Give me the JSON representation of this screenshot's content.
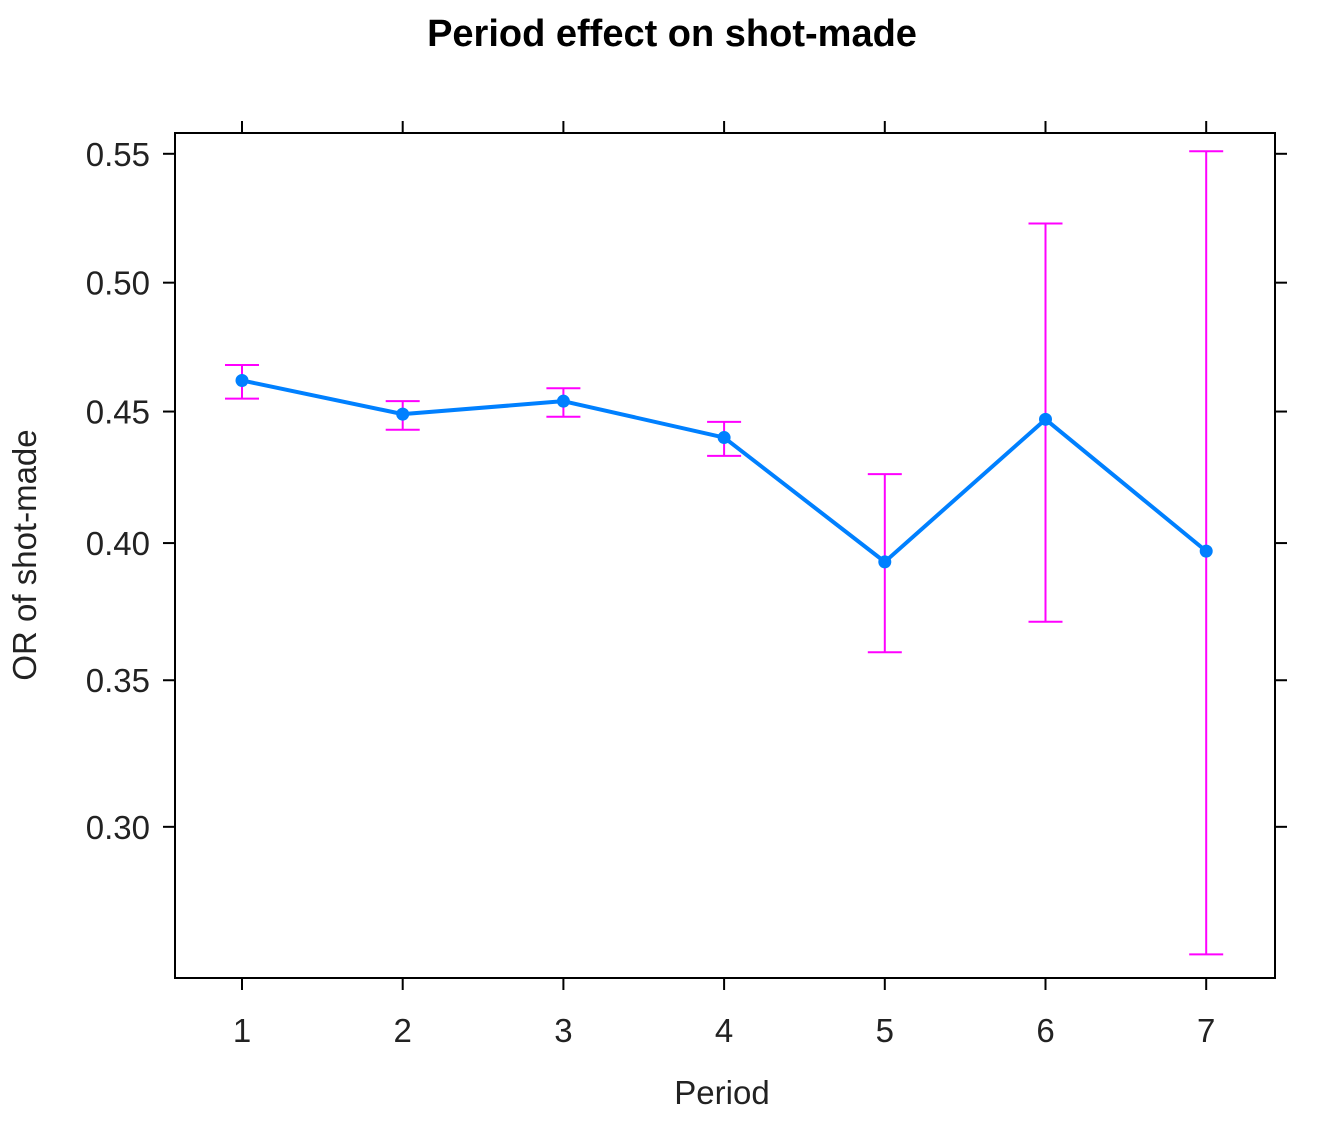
{
  "chart_data": {
    "type": "line",
    "title": "Period effect on shot-made",
    "xlabel": "Period",
    "ylabel": "OR of shot-made",
    "categories": [
      "1",
      "2",
      "3",
      "4",
      "5",
      "6",
      "7"
    ],
    "y_scale": "logit",
    "ylim": [
      0.253,
      0.558
    ],
    "yticks": [
      "0.30",
      "0.35",
      "0.40",
      "0.45",
      "0.50",
      "0.55"
    ],
    "series": [
      {
        "values": [
          0.462,
          0.449,
          0.454,
          0.44,
          0.393,
          0.447,
          0.397
        ],
        "lower": [
          0.455,
          0.443,
          0.448,
          0.433,
          0.36,
          0.371,
          0.26
        ],
        "upper": [
          0.468,
          0.454,
          0.459,
          0.446,
          0.426,
          0.523,
          0.551
        ]
      }
    ],
    "colors": {
      "line": "#0080ff",
      "errorbar": "#ff00ff",
      "frame": "#000000"
    },
    "grid": false,
    "legend": "none"
  }
}
